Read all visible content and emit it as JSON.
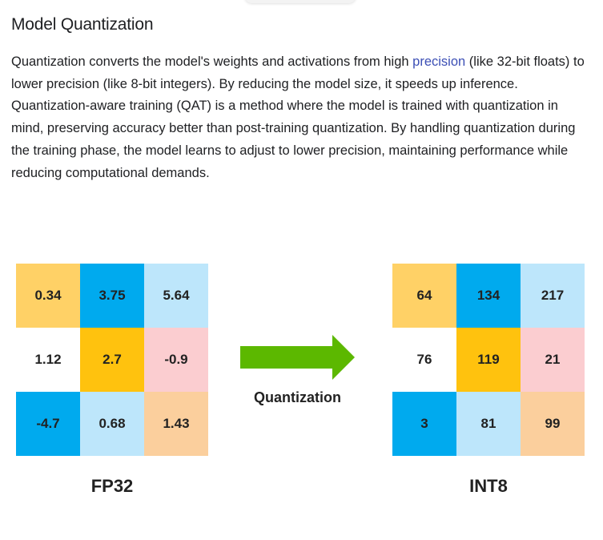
{
  "article": {
    "title": "Model Quantization",
    "paragraph": {
      "before_link": "Quantization converts the model's weights and activations from high ",
      "link_text": "precision",
      "after_link": " (like 32-bit floats) to lower precision (like 8-bit integers). By reducing the model size, it speeds up inference. Quantization-aware training (QAT) is a method where the model is trained with quantization in mind, preserving accuracy better than post-training quantization. By handling quantization during the training phase, the model learns to adjust to lower precision, maintaining performance while reducing computational demands."
    }
  },
  "figure": {
    "fp32": {
      "label": "FP32",
      "cells": [
        {
          "value": "0.34",
          "color": "#ffd166"
        },
        {
          "value": "3.75",
          "color": "#00aaee"
        },
        {
          "value": "5.64",
          "color": "#bde6fb"
        },
        {
          "value": "1.12",
          "color": "#ffffff"
        },
        {
          "value": "2.7",
          "color": "#ffc20e"
        },
        {
          "value": "-0.9",
          "color": "#fbcdd0"
        },
        {
          "value": "-4.7",
          "color": "#00aaee"
        },
        {
          "value": "0.68",
          "color": "#bde6fb"
        },
        {
          "value": "1.43",
          "color": "#fbcf9d"
        }
      ]
    },
    "arrow": {
      "label": "Quantization",
      "color": "#5cb800",
      "icon": "right-arrow-icon"
    },
    "int8": {
      "label": "INT8",
      "cells": [
        {
          "value": "64",
          "color": "#ffd166"
        },
        {
          "value": "134",
          "color": "#00aaee"
        },
        {
          "value": "217",
          "color": "#bde6fb"
        },
        {
          "value": "76",
          "color": "#ffffff"
        },
        {
          "value": "119",
          "color": "#ffc20e"
        },
        {
          "value": "21",
          "color": "#fbcdd0"
        },
        {
          "value": "3",
          "color": "#00aaee"
        },
        {
          "value": "81",
          "color": "#bde6fb"
        },
        {
          "value": "99",
          "color": "#fbcf9d"
        }
      ]
    }
  }
}
